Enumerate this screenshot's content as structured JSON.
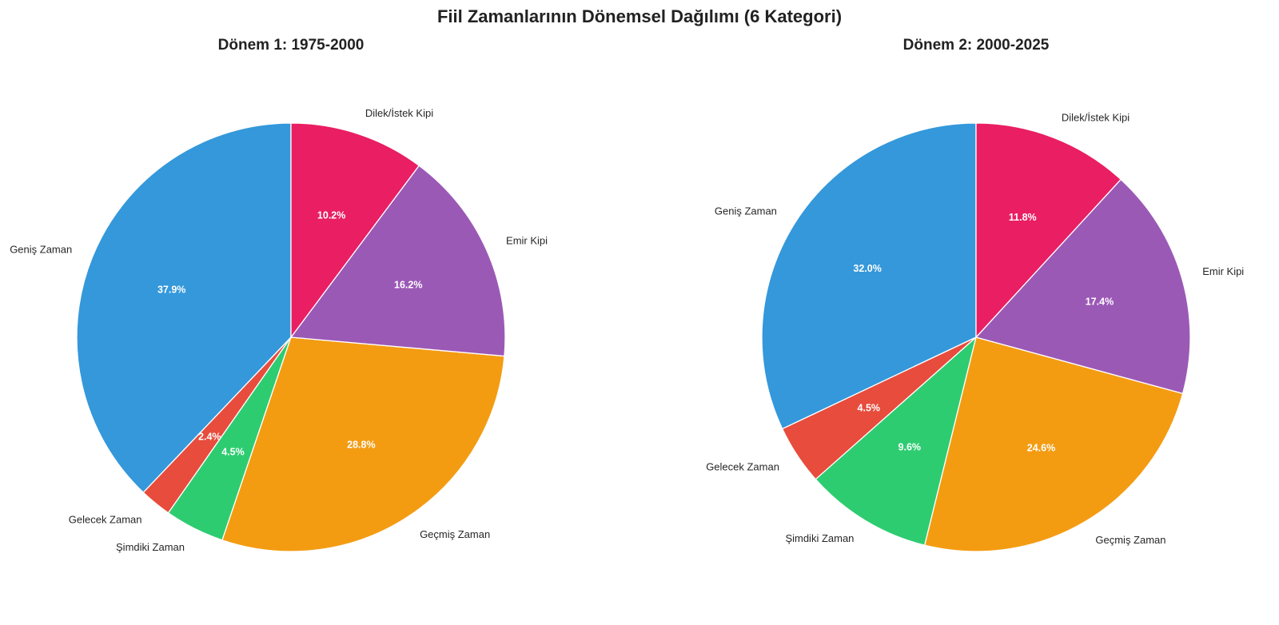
{
  "figure": {
    "title": "Fiil Zamanlarının Dönemsel Dağılımı (6 Kategori)"
  },
  "chart_data": [
    {
      "type": "pie",
      "title": "Dönem 1: 1975-2000",
      "start_angle_deg": 90,
      "direction": "counterclockwise",
      "labels": [
        "Geniş Zaman",
        "Gelecek Zaman",
        "Şimdiki Zaman",
        "Geçmiş Zaman",
        "Emir Kipi",
        "Dilek/İstek Kipi"
      ],
      "values": [
        37.9,
        2.4,
        4.5,
        28.8,
        16.2,
        10.2
      ],
      "value_labels": [
        "37.9%",
        "2.4%",
        "4.5%",
        "28.8%",
        "16.2%",
        "10.2%"
      ],
      "colors": [
        "#3498db",
        "#e74c3c",
        "#2ecc71",
        "#f39c12",
        "#9b59b6",
        "#e91e63"
      ]
    },
    {
      "type": "pie",
      "title": "Dönem 2: 2000-2025",
      "start_angle_deg": 90,
      "direction": "counterclockwise",
      "labels": [
        "Geniş Zaman",
        "Gelecek Zaman",
        "Şimdiki Zaman",
        "Geçmiş Zaman",
        "Emir Kipi",
        "Dilek/İstek Kipi"
      ],
      "values": [
        32.0,
        4.5,
        9.6,
        24.6,
        17.4,
        11.8
      ],
      "value_labels": [
        "32.0%",
        "4.5%",
        "9.6%",
        "24.6%",
        "17.4%",
        "11.8%"
      ],
      "colors": [
        "#3498db",
        "#e74c3c",
        "#2ecc71",
        "#f39c12",
        "#9b59b6",
        "#e91e63"
      ]
    }
  ]
}
